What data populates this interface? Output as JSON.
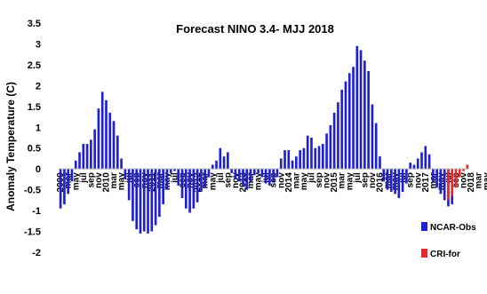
{
  "chart_data": {
    "type": "bar",
    "title": "Forecast NINO 3.4- MJJ 2018",
    "xlabel": "",
    "ylabel": "Anomaly Temperature (C)",
    "ylim": [
      -2,
      3.5
    ],
    "yticks": [
      "3.5",
      "3",
      "2.5",
      "2",
      "1.5",
      "1",
      "0.5",
      "0",
      "-0.5",
      "-1",
      "-1.5",
      "-2"
    ],
    "grid": false,
    "legend_position": "bottom-right",
    "xtick_labels": [
      "2009",
      "mar",
      "may",
      "jul",
      "sep",
      "nov",
      "2010",
      "mar",
      "may",
      "jul",
      "sep",
      "nov",
      "2011",
      "mar",
      "may",
      "jul",
      "sep",
      "nov",
      "2012",
      "mar",
      "may",
      "jul",
      "sep",
      "nov",
      "2013",
      "mar",
      "may",
      "jul",
      "sep",
      "nov",
      "2014",
      "mar",
      "may",
      "jul",
      "sep",
      "nov",
      "2015",
      "mar",
      "may",
      "jul",
      "sep",
      "nov",
      "2016",
      "mar",
      "may",
      "jul",
      "sep",
      "nov",
      "2017",
      "mar",
      "may",
      "jul",
      "sep",
      "nov",
      "2018",
      "mar",
      "may",
      "jul"
    ],
    "series": [
      {
        "name": "NCAR-Obs",
        "color": "#1f1fd6",
        "values": [
          -0.95,
          -0.85,
          -0.6,
          -0.3,
          0.2,
          0.4,
          0.6,
          0.6,
          0.7,
          0.95,
          1.45,
          1.85,
          1.65,
          1.35,
          1.15,
          0.8,
          0.25,
          -0.25,
          -0.75,
          -1.25,
          -1.45,
          -1.55,
          -1.5,
          -1.55,
          -1.5,
          -1.35,
          -1.15,
          -0.85,
          -0.5,
          -0.1,
          -0.05,
          -0.4,
          -0.7,
          -0.95,
          -1.05,
          -0.95,
          -0.8,
          -0.55,
          -0.45,
          -0.2,
          0.1,
          0.2,
          0.5,
          0.3,
          0.4,
          -0.1,
          -0.25,
          -0.3,
          -0.4,
          -0.5,
          -0.3,
          -0.15,
          -0.1,
          -0.2,
          -0.35,
          -0.4,
          -0.3,
          -0.2,
          0.25,
          0.45,
          0.45,
          0.2,
          0.3,
          0.45,
          0.5,
          0.8,
          0.75,
          0.5,
          0.55,
          0.6,
          0.85,
          1.05,
          1.35,
          1.6,
          1.9,
          2.1,
          2.3,
          2.45,
          2.95,
          2.85,
          2.6,
          2.35,
          1.55,
          1.1,
          0.3,
          -0.3,
          -0.5,
          -0.55,
          -0.6,
          -0.7,
          -0.55,
          -0.35,
          0.15,
          0.1,
          0.25,
          0.4,
          0.55,
          0.35,
          -0.3,
          -0.45,
          -0.6,
          -0.75,
          -0.9,
          -0.85
        ],
        "start_index": 0
      },
      {
        "name": "CRI-for",
        "color": "#e82a2a",
        "values": [
          -0.75,
          -0.65,
          -0.45,
          -0.2,
          -0.05,
          0.1
        ],
        "start_index": 102
      }
    ]
  }
}
